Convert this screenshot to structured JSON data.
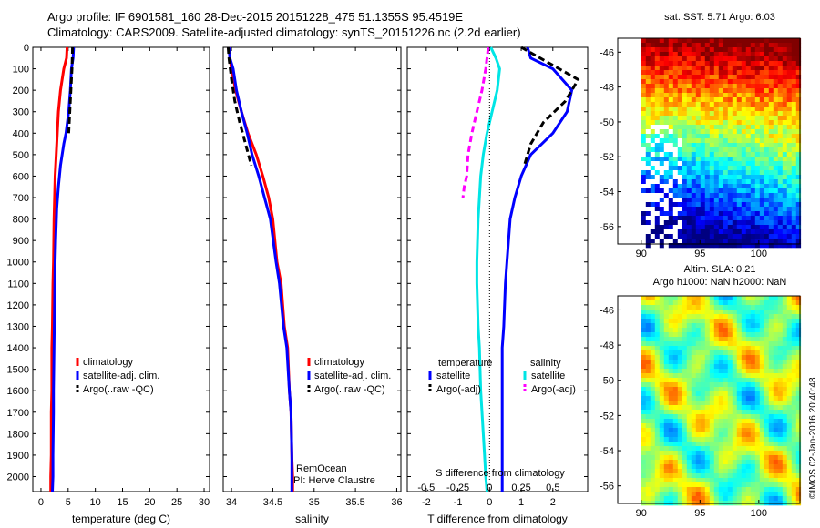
{
  "header": {
    "title_line1": "Argo profile: IF 6901581_160 28-Dec-2015 20151228_475 51.1355S 95.4519E",
    "title_line2": "Climatology: CARS2009. Satellite-adjusted climatology: synTS_20151226.nc (2.2d earlier)"
  },
  "colors": {
    "climatology": "#ff0000",
    "satellite": "#0000ff",
    "argo": "#000000",
    "satellite_salinity": "#00e5e5",
    "argo_salinity": "#ff00ff"
  },
  "chart_data": [
    {
      "type": "line",
      "panel": "temperature",
      "xlabel": "temperature (deg C)",
      "ylabel": "",
      "xlim": [
        -1.5,
        31
      ],
      "ylim": [
        2070,
        0
      ],
      "xticks": [
        0,
        5,
        10,
        15,
        20,
        25,
        30
      ],
      "yticks": [
        0,
        100,
        200,
        300,
        400,
        500,
        600,
        700,
        800,
        900,
        1000,
        1100,
        1200,
        1300,
        1400,
        1500,
        1600,
        1700,
        1800,
        1900,
        2000
      ],
      "legend": [
        "climatology",
        "satellite-adj. clim.",
        "Argo(..raw -QC)"
      ],
      "series": [
        {
          "name": "climatology",
          "color": "#ff0000",
          "x": [
            4.8,
            4.7,
            4.2,
            3.6,
            3.2,
            3.0,
            2.8,
            2.6,
            2.5,
            2.4,
            2.3,
            2.2,
            2.1,
            2.0,
            2.0,
            1.9,
            1.9,
            1.8,
            1.8
          ],
          "y": [
            0,
            50,
            100,
            200,
            300,
            400,
            500,
            600,
            700,
            800,
            1000,
            1100,
            1300,
            1400,
            1600,
            1700,
            1900,
            2000,
            2070
          ]
        },
        {
          "name": "satellite-adj. clim.",
          "color": "#0000ff",
          "x": [
            6.0,
            5.9,
            5.6,
            5.4,
            5.1,
            4.6,
            4.2,
            3.6,
            3.2,
            2.9,
            2.7,
            2.6,
            2.5,
            2.4,
            2.3,
            2.3,
            2.2,
            2.2,
            2.1
          ],
          "y": [
            0,
            50,
            100,
            200,
            300,
            400,
            450,
            550,
            650,
            750,
            900,
            1000,
            1200,
            1400,
            1600,
            1700,
            1900,
            2000,
            2070
          ]
        },
        {
          "name": "Argo(..raw -QC)",
          "color": "#000000",
          "x": [
            5.8,
            5.7,
            5.5,
            5.3,
            5.1
          ],
          "y": [
            0,
            100,
            200,
            300,
            400
          ]
        }
      ]
    },
    {
      "type": "line",
      "panel": "salinity",
      "xlabel": "salinity",
      "ylabel": "",
      "xlim": [
        33.9,
        36.05
      ],
      "ylim": [
        2070,
        0
      ],
      "xticks": [
        34,
        34.5,
        35,
        35.5,
        36
      ],
      "xtick_labels": [
        "34",
        "34.5",
        "35",
        "35.5",
        "36"
      ],
      "legend": [
        "climatology",
        "satellite-adj. clim.",
        "Argo(..raw -QC)"
      ],
      "annotations": [
        "RemOcean",
        "PI: Herve Claustre"
      ],
      "series": [
        {
          "name": "climatology",
          "color": "#ff0000",
          "x": [
            33.97,
            33.98,
            34.0,
            34.05,
            34.12,
            34.2,
            34.3,
            34.38,
            34.45,
            34.5,
            34.55,
            34.6,
            34.64,
            34.68,
            34.7,
            34.72,
            34.73,
            34.74,
            34.74
          ],
          "y": [
            0,
            50,
            100,
            200,
            300,
            400,
            500,
            600,
            700,
            800,
            1000,
            1100,
            1300,
            1400,
            1600,
            1700,
            1900,
            2000,
            2070
          ]
        },
        {
          "name": "satellite-adj. clim.",
          "color": "#0000ff",
          "x": [
            33.97,
            33.98,
            34.02,
            34.06,
            34.12,
            34.19,
            34.25,
            34.33,
            34.4,
            34.47,
            34.54,
            34.58,
            34.63,
            34.67,
            34.7,
            34.72,
            34.73,
            34.73,
            34.73
          ],
          "y": [
            0,
            50,
            100,
            200,
            300,
            400,
            500,
            600,
            700,
            800,
            1000,
            1100,
            1300,
            1400,
            1600,
            1700,
            1900,
            2000,
            2070
          ]
        },
        {
          "name": "Argo(..raw -QC)",
          "color": "#000000",
          "x": [
            33.96,
            33.97,
            34.0,
            34.04,
            34.1,
            34.17,
            34.24
          ],
          "y": [
            0,
            50,
            150,
            250,
            350,
            450,
            550
          ]
        }
      ]
    },
    {
      "type": "line",
      "panel": "difference",
      "xlabel": "T difference from climatology",
      "xlabel_top": "S difference from climatology",
      "xlim": [
        -2.6,
        3.1
      ],
      "ylim": [
        2070,
        0
      ],
      "xticks": [
        -2,
        -1,
        0,
        1,
        2
      ],
      "xticks_top": [
        -0.5,
        -0.25,
        0,
        0.25,
        0.5
      ],
      "legend_headers": [
        "temperature",
        "salinity"
      ],
      "legend": [
        "satellite",
        "Argo(-adj)",
        "satellite",
        "Argo(-adj)"
      ],
      "series": [
        {
          "name": "temperature satellite",
          "color": "#0000ff",
          "x": [
            1.2,
            1.3,
            2.0,
            2.6,
            2.45,
            2.0,
            1.3,
            1.0,
            0.8,
            0.65,
            0.55,
            0.5,
            0.45,
            0.4,
            0.4,
            0.4,
            0.4,
            0.4,
            0.4
          ],
          "y": [
            0,
            50,
            100,
            200,
            300,
            400,
            500,
            600,
            700,
            800,
            1000,
            1100,
            1300,
            1400,
            1600,
            1700,
            1900,
            2000,
            2070
          ]
        },
        {
          "name": "temperature Argo(-adj)",
          "color": "#000000",
          "x": [
            1.0,
            1.6,
            2.8,
            2.4,
            1.7,
            1.3,
            1.1
          ],
          "y": [
            0,
            50,
            150,
            250,
            350,
            450,
            550
          ]
        },
        {
          "name": "salinity satellite",
          "color": "#00e5e5",
          "x": [
            0.01,
            0.05,
            0.08,
            0.06,
            0.02,
            -0.02,
            -0.05,
            -0.07,
            -0.08,
            -0.09,
            -0.1,
            -0.1,
            -0.09,
            -0.08,
            -0.07,
            -0.06,
            -0.04,
            -0.03,
            -0.02
          ],
          "y": [
            0,
            50,
            100,
            200,
            300,
            400,
            500,
            600,
            700,
            800,
            1000,
            1100,
            1300,
            1400,
            1600,
            1700,
            1900,
            2000,
            2070
          ]
        },
        {
          "name": "salinity Argo(-adj)",
          "color": "#ff00ff",
          "x": [
            -0.01,
            -0.03,
            -0.06,
            -0.1,
            -0.14,
            -0.17,
            -0.18,
            -0.2,
            -0.21
          ],
          "y": [
            0,
            100,
            200,
            300,
            400,
            500,
            600,
            650,
            700
          ]
        }
      ]
    },
    {
      "type": "heatmap",
      "panel": "sst_map",
      "title": "sat. SST: 5.71  Argo: 6.03",
      "xlim": [
        88,
        103.5
      ],
      "ylim": [
        -57,
        -45.2
      ],
      "xticks": [
        90,
        95,
        100
      ],
      "yticks": [
        -46,
        -48,
        -50,
        -52,
        -54,
        -56
      ]
    },
    {
      "type": "heatmap",
      "panel": "sla_map",
      "title_lines": [
        "Altim. SLA: 0.21",
        "Argo h1000: NaN h2000: NaN"
      ],
      "xlim": [
        88,
        103.5
      ],
      "ylim": [
        -57,
        -45.2
      ],
      "xticks": [
        90,
        95,
        100
      ],
      "yticks": [
        -46,
        -48,
        -50,
        -52,
        -54,
        -56
      ]
    }
  ],
  "credit": "©IMOS 02-Jan-2016 20:40:48"
}
